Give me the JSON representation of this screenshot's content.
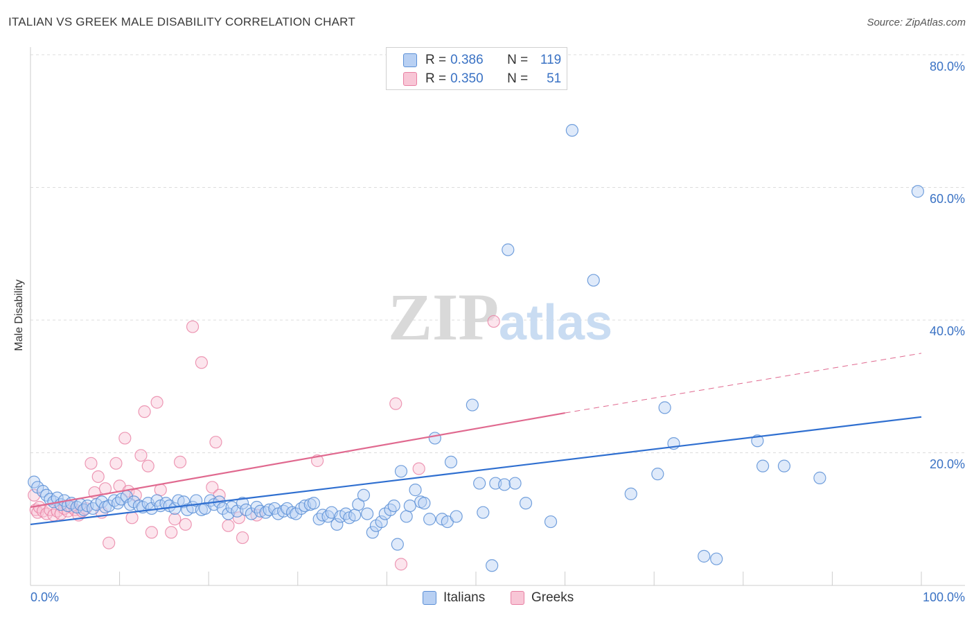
{
  "title": "ITALIAN VS GREEK MALE DISABILITY CORRELATION CHART",
  "source": "Source: ZipAtlas.com",
  "watermark": {
    "zip": "ZIP",
    "atlas": "atlas"
  },
  "colors": {
    "blue": "#5b8fd6",
    "blue_fill": "#b8d0f3",
    "pink": "#e87fa2",
    "pink_fill": "#f8c6d6",
    "blue_line": "#2f6fd0",
    "pink_line": "#e0698f",
    "axis_text": "#3a72c4"
  },
  "legend_top": {
    "rows": [
      {
        "r_label": "R =",
        "r_value": "0.386",
        "n_label": "N =",
        "n_value": "119"
      },
      {
        "r_label": "R =",
        "r_value": "0.350",
        "n_label": "N =",
        "n_value": "51"
      }
    ]
  },
  "legend_bottom": {
    "italians": "Italians",
    "greeks": "Greeks"
  },
  "x_axis": {
    "min_label": "0.0%",
    "max_label": "100.0%"
  },
  "y_axis": {
    "label": "Male Disability",
    "ticks": [
      "20.0%",
      "40.0%",
      "60.0%",
      "80.0%"
    ]
  },
  "chart_data": {
    "type": "scatter",
    "xlim": [
      0,
      100
    ],
    "ylim": [
      0,
      82
    ],
    "grid": true,
    "legend_placement": "top-center",
    "series": [
      {
        "name": "Italians",
        "trend": {
          "x0": 0,
          "y0": 9.2,
          "x1": 100,
          "y1": 25.4
        },
        "points": [
          [
            0.4,
            15.6
          ],
          [
            0.8,
            14.8
          ],
          [
            1.4,
            14.2
          ],
          [
            1.8,
            13.6
          ],
          [
            2.2,
            13.0
          ],
          [
            2.6,
            12.6
          ],
          [
            3.0,
            13.2
          ],
          [
            3.4,
            12.2
          ],
          [
            3.8,
            12.8
          ],
          [
            4.2,
            12.0
          ],
          [
            4.6,
            12.4
          ],
          [
            5.2,
            11.8
          ],
          [
            5.6,
            12.2
          ],
          [
            6.0,
            11.4
          ],
          [
            6.4,
            12.0
          ],
          [
            7.0,
            11.6
          ],
          [
            7.4,
            12.2
          ],
          [
            8.0,
            12.6
          ],
          [
            8.4,
            11.8
          ],
          [
            8.8,
            12.0
          ],
          [
            9.4,
            12.8
          ],
          [
            9.8,
            12.4
          ],
          [
            10.2,
            13.0
          ],
          [
            10.8,
            13.4
          ],
          [
            11.2,
            12.2
          ],
          [
            11.6,
            12.6
          ],
          [
            12.2,
            12.0
          ],
          [
            12.6,
            11.8
          ],
          [
            13.2,
            12.4
          ],
          [
            13.6,
            11.6
          ],
          [
            14.2,
            12.8
          ],
          [
            14.6,
            12.0
          ],
          [
            15.2,
            12.4
          ],
          [
            15.6,
            12.0
          ],
          [
            16.2,
            11.6
          ],
          [
            16.6,
            12.8
          ],
          [
            17.2,
            12.6
          ],
          [
            17.6,
            11.4
          ],
          [
            18.2,
            11.8
          ],
          [
            18.6,
            12.8
          ],
          [
            19.2,
            11.4
          ],
          [
            19.6,
            11.6
          ],
          [
            20.2,
            12.8
          ],
          [
            20.6,
            12.2
          ],
          [
            21.2,
            12.6
          ],
          [
            21.6,
            11.6
          ],
          [
            22.2,
            10.8
          ],
          [
            22.6,
            11.8
          ],
          [
            23.2,
            11.2
          ],
          [
            23.8,
            12.4
          ],
          [
            24.2,
            11.4
          ],
          [
            24.8,
            10.8
          ],
          [
            25.4,
            11.8
          ],
          [
            25.8,
            11.2
          ],
          [
            26.4,
            11.0
          ],
          [
            26.8,
            11.4
          ],
          [
            27.4,
            11.6
          ],
          [
            27.8,
            10.8
          ],
          [
            28.4,
            11.2
          ],
          [
            28.8,
            11.6
          ],
          [
            29.4,
            11.0
          ],
          [
            29.8,
            10.8
          ],
          [
            30.4,
            11.6
          ],
          [
            30.8,
            12.0
          ],
          [
            31.4,
            12.2
          ],
          [
            31.8,
            12.4
          ],
          [
            32.4,
            10.0
          ],
          [
            32.8,
            10.6
          ],
          [
            33.4,
            10.4
          ],
          [
            33.8,
            11.0
          ],
          [
            34.4,
            9.2
          ],
          [
            34.8,
            10.4
          ],
          [
            35.4,
            10.8
          ],
          [
            35.8,
            10.2
          ],
          [
            36.4,
            10.6
          ],
          [
            36.8,
            12.2
          ],
          [
            37.4,
            13.6
          ],
          [
            37.8,
            10.8
          ],
          [
            38.4,
            8.0
          ],
          [
            38.8,
            9.0
          ],
          [
            39.4,
            9.6
          ],
          [
            39.8,
            10.8
          ],
          [
            40.4,
            11.4
          ],
          [
            40.8,
            12.0
          ],
          [
            41.2,
            6.2
          ],
          [
            41.6,
            17.2
          ],
          [
            42.2,
            10.4
          ],
          [
            42.6,
            12.0
          ],
          [
            43.2,
            14.4
          ],
          [
            43.8,
            12.6
          ],
          [
            44.2,
            12.4
          ],
          [
            44.8,
            10.0
          ],
          [
            45.4,
            22.2
          ],
          [
            46.2,
            10.0
          ],
          [
            46.8,
            9.6
          ],
          [
            47.2,
            18.6
          ],
          [
            47.8,
            10.4
          ],
          [
            49.6,
            27.2
          ],
          [
            50.4,
            15.4
          ],
          [
            50.8,
            11.0
          ],
          [
            51.8,
            3.0
          ],
          [
            52.2,
            15.4
          ],
          [
            53.2,
            15.2
          ],
          [
            53.6,
            50.6
          ],
          [
            54.4,
            15.4
          ],
          [
            55.6,
            12.4
          ],
          [
            58.4,
            9.6
          ],
          [
            60.8,
            68.6
          ],
          [
            63.2,
            46.0
          ],
          [
            67.4,
            13.8
          ],
          [
            70.4,
            16.8
          ],
          [
            71.2,
            26.8
          ],
          [
            72.2,
            21.4
          ],
          [
            75.6,
            4.4
          ],
          [
            77.0,
            4.0
          ],
          [
            81.6,
            21.8
          ],
          [
            82.2,
            18.0
          ],
          [
            84.6,
            18.0
          ],
          [
            88.6,
            16.2
          ],
          [
            99.6,
            59.4
          ]
        ]
      },
      {
        "name": "Greeks",
        "trend": {
          "x0": 0,
          "y0": 11.8,
          "x1": 60,
          "y1": 26.0
        },
        "trend_extended": {
          "x0": 60,
          "y0": 26.0,
          "x1": 100,
          "y1": 35.0
        },
        "points": [
          [
            0.4,
            13.6
          ],
          [
            0.6,
            11.4
          ],
          [
            0.8,
            11.0
          ],
          [
            1.0,
            11.8
          ],
          [
            1.4,
            11.2
          ],
          [
            1.8,
            10.8
          ],
          [
            2.2,
            11.4
          ],
          [
            2.6,
            10.6
          ],
          [
            3.0,
            11.2
          ],
          [
            3.4,
            10.8
          ],
          [
            3.8,
            11.6
          ],
          [
            4.2,
            11.2
          ],
          [
            4.6,
            11.8
          ],
          [
            5.0,
            11.4
          ],
          [
            5.4,
            10.6
          ],
          [
            5.8,
            11.2
          ],
          [
            6.2,
            11.6
          ],
          [
            6.8,
            18.4
          ],
          [
            7.2,
            14.0
          ],
          [
            7.6,
            16.4
          ],
          [
            8.0,
            11.0
          ],
          [
            8.4,
            14.6
          ],
          [
            8.8,
            6.4
          ],
          [
            9.6,
            18.4
          ],
          [
            10.0,
            15.0
          ],
          [
            10.6,
            22.2
          ],
          [
            11.0,
            14.2
          ],
          [
            11.4,
            10.2
          ],
          [
            11.8,
            13.6
          ],
          [
            12.4,
            19.6
          ],
          [
            12.8,
            26.2
          ],
          [
            13.2,
            18.0
          ],
          [
            13.6,
            8.0
          ],
          [
            14.2,
            27.6
          ],
          [
            14.6,
            14.4
          ],
          [
            15.8,
            8.0
          ],
          [
            16.2,
            10.0
          ],
          [
            16.8,
            18.6
          ],
          [
            17.4,
            9.2
          ],
          [
            18.2,
            39.0
          ],
          [
            19.2,
            33.6
          ],
          [
            20.4,
            14.8
          ],
          [
            20.8,
            21.6
          ],
          [
            21.2,
            13.6
          ],
          [
            22.2,
            9.0
          ],
          [
            23.4,
            10.2
          ],
          [
            23.8,
            7.2
          ],
          [
            25.4,
            10.6
          ],
          [
            32.2,
            18.8
          ],
          [
            41.0,
            27.4
          ],
          [
            41.6,
            3.2
          ],
          [
            43.6,
            17.6
          ],
          [
            52.0,
            39.8
          ]
        ]
      }
    ]
  }
}
